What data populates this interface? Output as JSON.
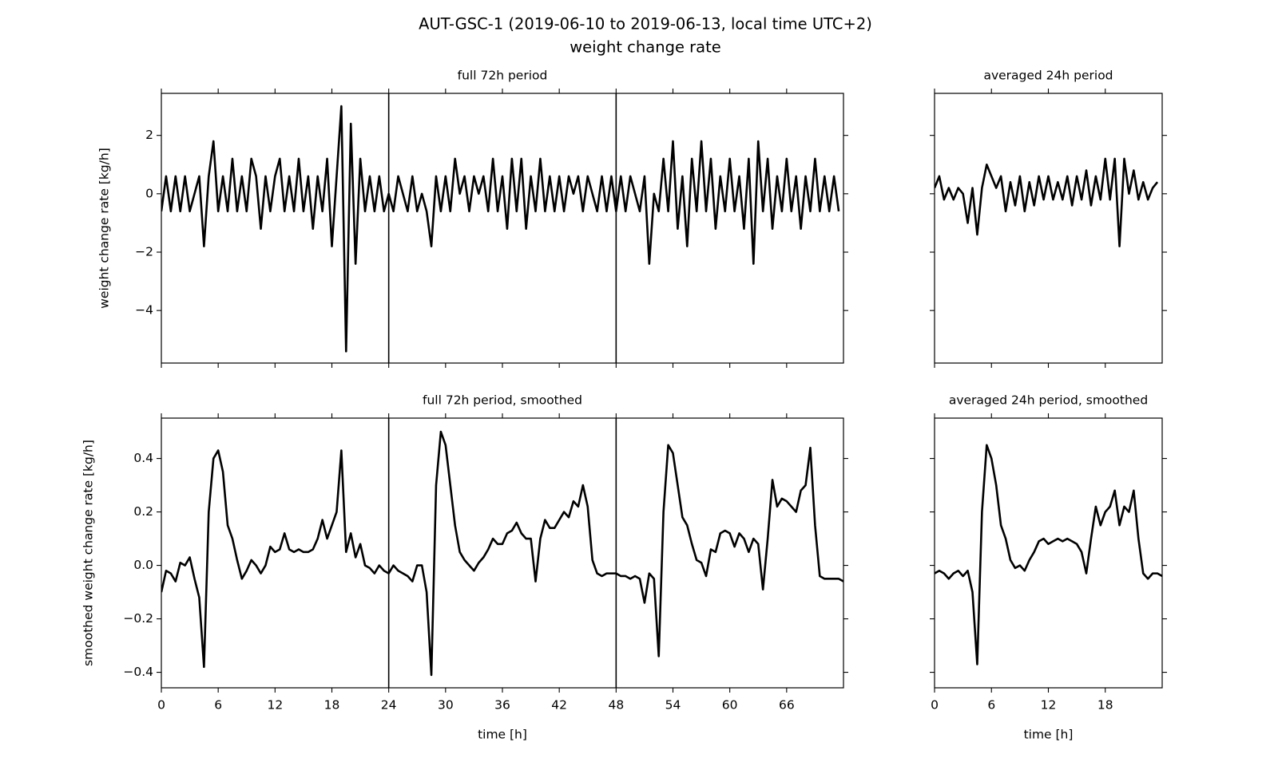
{
  "title": [
    "AUT-GSC-1 (2019-06-10 to 2019-06-13, local time UTC+2)",
    "weight change rate"
  ],
  "chart_data": [
    {
      "type": "line",
      "title": "full 72h period",
      "y_label": "weight change rate [kg/h]",
      "color": "#000000",
      "x": [
        0,
        0.5,
        1,
        1.5,
        2,
        2.5,
        3,
        3.5,
        4,
        4.5,
        5,
        5.5,
        6,
        6.5,
        7,
        7.5,
        8,
        8.5,
        9,
        9.5,
        10,
        10.5,
        11,
        11.5,
        12,
        12.5,
        13,
        13.5,
        14,
        14.5,
        15,
        15.5,
        16,
        16.5,
        17,
        17.5,
        18,
        18.5,
        19,
        19.5,
        20,
        20.5,
        21,
        21.5,
        22,
        22.5,
        23,
        23.5,
        24,
        24.5,
        25,
        25.5,
        26,
        26.5,
        27,
        27.5,
        28,
        28.5,
        29,
        29.5,
        30,
        30.5,
        31,
        31.5,
        32,
        32.5,
        33,
        33.5,
        34,
        34.5,
        35,
        35.5,
        36,
        36.5,
        37,
        37.5,
        38,
        38.5,
        39,
        39.5,
        40,
        40.5,
        41,
        41.5,
        42,
        42.5,
        43,
        43.5,
        44,
        44.5,
        45,
        45.5,
        46,
        46.5,
        47,
        47.5,
        48,
        48.5,
        49,
        49.5,
        50,
        50.5,
        51,
        51.5,
        52,
        52.5,
        53,
        53.5,
        54,
        54.5,
        55,
        55.5,
        56,
        56.5,
        57,
        57.5,
        58,
        58.5,
        59,
        59.5,
        60,
        60.5,
        61,
        61.5,
        62,
        62.5,
        63,
        63.5,
        64,
        64.5,
        65,
        65.5,
        66,
        66.5,
        67,
        67.5,
        68,
        68.5,
        69,
        69.5,
        70,
        70.5,
        71,
        71.5
      ],
      "values": [
        -0.6,
        0.6,
        -0.6,
        0.6,
        -0.6,
        0.6,
        -0.6,
        0,
        0.6,
        -1.8,
        0.6,
        1.8,
        -0.6,
        0.6,
        -0.6,
        1.2,
        -0.6,
        0.6,
        -0.6,
        1.2,
        0.6,
        -1.2,
        0.6,
        -0.6,
        0.6,
        1.2,
        -0.6,
        0.6,
        -0.6,
        1.2,
        -0.6,
        0.6,
        -1.2,
        0.6,
        -0.6,
        1.2,
        -1.8,
        0.6,
        3,
        -5.4,
        2.4,
        -2.4,
        1.2,
        -0.6,
        0.6,
        -0.6,
        0.6,
        -0.6,
        0,
        -0.6,
        0.6,
        0,
        -0.6,
        0.6,
        -0.6,
        0,
        -0.6,
        -1.8,
        0.6,
        -0.6,
        0.6,
        -0.6,
        1.2,
        0,
        0.6,
        -0.6,
        0.6,
        0,
        0.6,
        -0.6,
        1.2,
        -0.6,
        0.6,
        -1.2,
        1.2,
        -0.6,
        1.2,
        -1.2,
        0.6,
        -0.6,
        1.2,
        -0.6,
        0.6,
        -0.6,
        0.6,
        -0.6,
        0.6,
        0,
        0.6,
        -0.6,
        0.6,
        0,
        -0.6,
        0.6,
        -0.6,
        0.6,
        -0.6,
        0.6,
        -0.6,
        0.6,
        0,
        -0.6,
        0.6,
        -2.4,
        0,
        -0.6,
        1.2,
        -0.6,
        1.8,
        -1.2,
        0.6,
        -1.8,
        1.2,
        -0.6,
        1.8,
        -0.6,
        1.2,
        -1.2,
        0.6,
        -0.6,
        1.2,
        -0.6,
        0.6,
        -1.2,
        1.2,
        -2.4,
        1.8,
        -0.6,
        1.2,
        -1.2,
        0.6,
        -0.6,
        1.2,
        -0.6,
        0.6,
        -1.2,
        0.6,
        -0.6,
        1.2,
        -0.6,
        0.6,
        -0.6,
        0.6,
        -0.6
      ],
      "xlim": [
        0,
        72
      ],
      "ylim": [
        -5.8,
        3.44
      ],
      "vlines": [
        24,
        48
      ],
      "xticks": [
        0,
        6,
        12,
        18,
        24,
        30,
        36,
        42,
        48,
        54,
        60,
        66
      ],
      "yticks": [
        {
          "value": -4,
          "label": "−4"
        },
        {
          "value": -2,
          "label": "−2"
        },
        0,
        2
      ]
    },
    {
      "type": "line",
      "title": "averaged 24h period",
      "color": "#000000",
      "x": [
        0,
        0.5,
        1,
        1.5,
        2,
        2.5,
        3,
        3.5,
        4,
        4.5,
        5,
        5.5,
        6,
        6.5,
        7,
        7.5,
        8,
        8.5,
        9,
        9.5,
        10,
        10.5,
        11,
        11.5,
        12,
        12.5,
        13,
        13.5,
        14,
        14.5,
        15,
        15.5,
        16,
        16.5,
        17,
        17.5,
        18,
        18.5,
        19,
        19.5,
        20,
        20.5,
        21,
        21.5,
        22,
        22.5,
        23,
        23.5
      ],
      "values": [
        0.2,
        0.6,
        -0.2,
        0.2,
        -0.2,
        0.2,
        0,
        -1,
        0.2,
        -1.4,
        0.2,
        1,
        0.6,
        0.2,
        0.6,
        -0.6,
        0.4,
        -0.4,
        0.6,
        -0.6,
        0.4,
        -0.4,
        0.6,
        -0.2,
        0.6,
        -0.2,
        0.4,
        -0.2,
        0.6,
        -0.4,
        0.6,
        -0.2,
        0.8,
        -0.4,
        0.6,
        -0.2,
        1.2,
        -0.2,
        1.2,
        -1.8,
        1.2,
        0,
        0.8,
        -0.2,
        0.4,
        -0.2,
        0.2,
        0.4
      ],
      "xlim": [
        0,
        24
      ],
      "ylim": [
        -5.8,
        3.44
      ],
      "xticks": [
        0,
        6,
        12,
        18
      ],
      "yticks": [
        {
          "value": -4,
          "label": "−4"
        },
        {
          "value": -2,
          "label": "−2"
        },
        0,
        2
      ]
    },
    {
      "type": "line",
      "title": "full 72h period, smoothed",
      "y_label": "smoothed weight change rate [kg/h]",
      "x_label": "time [h]",
      "color": "#000000",
      "x": [
        0,
        0.5,
        1,
        1.5,
        2,
        2.5,
        3,
        3.5,
        4,
        4.5,
        5,
        5.5,
        6,
        6.5,
        7,
        7.5,
        8,
        8.5,
        9,
        9.5,
        10,
        10.5,
        11,
        11.5,
        12,
        12.5,
        13,
        13.5,
        14,
        14.5,
        15,
        15.5,
        16,
        16.5,
        17,
        17.5,
        18,
        18.5,
        19,
        19.5,
        20,
        20.5,
        21,
        21.5,
        22,
        22.5,
        23,
        23.5,
        24,
        24.5,
        25,
        25.5,
        26,
        26.5,
        27,
        27.5,
        28,
        28.5,
        29,
        29.5,
        30,
        30.5,
        31,
        31.5,
        32,
        32.5,
        33,
        33.5,
        34,
        34.5,
        35,
        35.5,
        36,
        36.5,
        37,
        37.5,
        38,
        38.5,
        39,
        39.5,
        40,
        40.5,
        41,
        41.5,
        42,
        42.5,
        43,
        43.5,
        44,
        44.5,
        45,
        45.5,
        46,
        46.5,
        47,
        47.5,
        48,
        48.5,
        49,
        49.5,
        50,
        50.5,
        51,
        51.5,
        52,
        52.5,
        53,
        53.5,
        54,
        54.5,
        55,
        55.5,
        56,
        56.5,
        57,
        57.5,
        58,
        58.5,
        59,
        59.5,
        60,
        60.5,
        61,
        61.5,
        62,
        62.5,
        63,
        63.5,
        64,
        64.5,
        65,
        65.5,
        66,
        66.5,
        67,
        67.5,
        68,
        68.5,
        69,
        69.5,
        70,
        70.5,
        71,
        71.5,
        72
      ],
      "values": [
        -0.1,
        -0.02,
        -0.03,
        -0.06,
        0.01,
        0,
        0.03,
        -0.05,
        -0.12,
        -0.38,
        0.2,
        0.4,
        0.43,
        0.35,
        0.15,
        0.1,
        0.02,
        -0.05,
        -0.02,
        0.02,
        0,
        -0.03,
        0,
        0.07,
        0.05,
        0.06,
        0.12,
        0.06,
        0.05,
        0.06,
        0.05,
        0.05,
        0.06,
        0.1,
        0.17,
        0.1,
        0.15,
        0.2,
        0.43,
        0.05,
        0.12,
        0.03,
        0.08,
        0,
        -0.01,
        -0.03,
        0,
        -0.02,
        -0.03,
        0,
        -0.02,
        -0.03,
        -0.04,
        -0.06,
        0,
        0,
        -0.1,
        -0.41,
        0.3,
        0.5,
        0.45,
        0.3,
        0.15,
        0.05,
        0.02,
        0,
        -0.02,
        0.01,
        0.03,
        0.06,
        0.1,
        0.08,
        0.08,
        0.12,
        0.13,
        0.16,
        0.12,
        0.1,
        0.1,
        -0.06,
        0.1,
        0.17,
        0.14,
        0.14,
        0.17,
        0.2,
        0.18,
        0.24,
        0.22,
        0.3,
        0.22,
        0.02,
        -0.03,
        -0.04,
        -0.03,
        -0.03,
        -0.03,
        -0.04,
        -0.04,
        -0.05,
        -0.04,
        -0.05,
        -0.14,
        -0.03,
        -0.05,
        -0.34,
        0.2,
        0.45,
        0.42,
        0.3,
        0.18,
        0.15,
        0.08,
        0.02,
        0.01,
        -0.04,
        0.06,
        0.05,
        0.12,
        0.13,
        0.12,
        0.07,
        0.12,
        0.1,
        0.05,
        0.1,
        0.08,
        -0.09,
        0.1,
        0.32,
        0.22,
        0.25,
        0.24,
        0.22,
        0.2,
        0.28,
        0.3,
        0.44,
        0.15,
        -0.04,
        -0.05,
        -0.05,
        -0.05,
        -0.05,
        -0.06
      ],
      "xlim": [
        0,
        72
      ],
      "ylim": [
        -0.458,
        0.551
      ],
      "vlines": [
        24,
        48
      ],
      "xticks": [
        0,
        6,
        12,
        18,
        24,
        30,
        36,
        42,
        48,
        54,
        60,
        66
      ],
      "yticks": [
        {
          "value": -0.4,
          "label": "−0.4"
        },
        {
          "value": -0.2,
          "label": "−0.2"
        },
        {
          "value": 0,
          "label": "0.0"
        },
        {
          "value": 0.2,
          "label": "0.2"
        },
        {
          "value": 0.4,
          "label": "0.4"
        }
      ]
    },
    {
      "type": "line",
      "title": "averaged 24h period, smoothed",
      "x_label": "time [h]",
      "color": "#000000",
      "x": [
        0,
        0.5,
        1,
        1.5,
        2,
        2.5,
        3,
        3.5,
        4,
        4.5,
        5,
        5.5,
        6,
        6.5,
        7,
        7.5,
        8,
        8.5,
        9,
        9.5,
        10,
        10.5,
        11,
        11.5,
        12,
        12.5,
        13,
        13.5,
        14,
        14.5,
        15,
        15.5,
        16,
        16.5,
        17,
        17.5,
        18,
        18.5,
        19,
        19.5,
        20,
        20.5,
        21,
        21.5,
        22,
        22.5,
        23,
        23.5,
        24
      ],
      "values": [
        -0.03,
        -0.02,
        -0.03,
        -0.05,
        -0.03,
        -0.02,
        -0.04,
        -0.02,
        -0.1,
        -0.37,
        0.2,
        0.45,
        0.4,
        0.3,
        0.15,
        0.1,
        0.02,
        -0.01,
        0,
        -0.02,
        0.02,
        0.05,
        0.09,
        0.1,
        0.08,
        0.09,
        0.1,
        0.09,
        0.1,
        0.09,
        0.08,
        0.05,
        -0.03,
        0.1,
        0.22,
        0.15,
        0.2,
        0.22,
        0.28,
        0.15,
        0.22,
        0.2,
        0.28,
        0.1,
        -0.03,
        -0.05,
        -0.03,
        -0.03,
        -0.04
      ],
      "xlim": [
        0,
        24
      ],
      "ylim": [
        -0.458,
        0.551
      ],
      "xticks": [
        0,
        6,
        12,
        18
      ],
      "yticks": [
        {
          "value": -0.4,
          "label": "−0.4"
        },
        {
          "value": -0.2,
          "label": "−0.2"
        },
        {
          "value": 0,
          "label": "0.0"
        },
        {
          "value": 0.2,
          "label": "0.2"
        },
        {
          "value": 0.4,
          "label": "0.4"
        }
      ]
    }
  ]
}
